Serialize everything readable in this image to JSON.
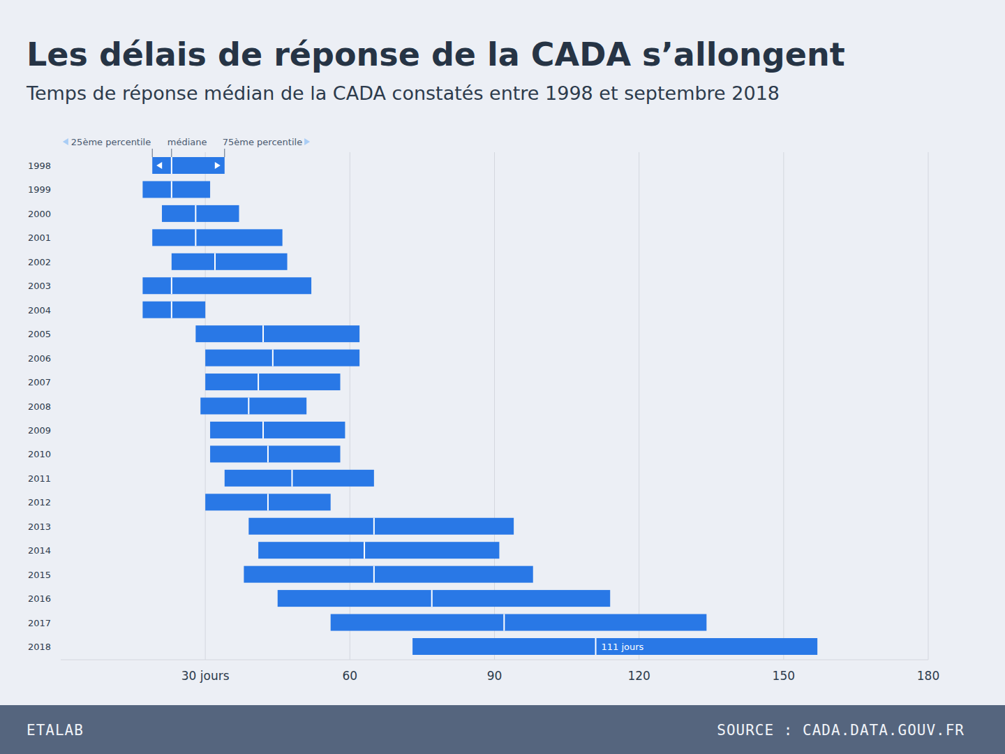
{
  "chart_data": {
    "type": "bar",
    "orientation": "horizontal",
    "title": "Les délais de réponse de la CADA s’allongent",
    "subtitle": "Temps de réponse médian de la CADA constatés entre 1998 et septembre 2018",
    "categories": [
      "1998",
      "1999",
      "2000",
      "2001",
      "2002",
      "2003",
      "2004",
      "2005",
      "2006",
      "2007",
      "2008",
      "2009",
      "2010",
      "2011",
      "2012",
      "2013",
      "2014",
      "2015",
      "2016",
      "2017",
      "2018"
    ],
    "series": [
      {
        "name": "25ème percentile",
        "values": [
          19,
          17,
          21,
          19,
          23,
          17,
          17,
          28,
          30,
          30,
          29,
          31,
          31,
          34,
          30,
          39,
          41,
          38,
          45,
          56,
          73
        ]
      },
      {
        "name": "médiane",
        "values": [
          23,
          23,
          28,
          28,
          32,
          23,
          23,
          42,
          44,
          41,
          39,
          42,
          43,
          48,
          43,
          65,
          63,
          65,
          77,
          92,
          111
        ],
        "value_labels": [
          null,
          null,
          null,
          null,
          null,
          null,
          null,
          null,
          null,
          null,
          null,
          null,
          null,
          null,
          null,
          null,
          null,
          null,
          null,
          null,
          "111 jours"
        ]
      },
      {
        "name": "75ème percentile",
        "values": [
          34,
          31,
          37,
          46,
          47,
          52,
          30,
          62,
          62,
          58,
          51,
          59,
          58,
          65,
          56,
          94,
          91,
          98,
          114,
          134,
          157
        ]
      }
    ],
    "color": "#2978e6",
    "xlim": [
      0,
      180
    ],
    "xticks": [
      {
        "value": 30,
        "label": "30 jours"
      },
      60,
      90,
      120,
      150,
      180
    ],
    "grid": true,
    "footer_left": "ETALAB",
    "footer_right": "SOURCE : CADA.DATA.GOUV.FR"
  }
}
